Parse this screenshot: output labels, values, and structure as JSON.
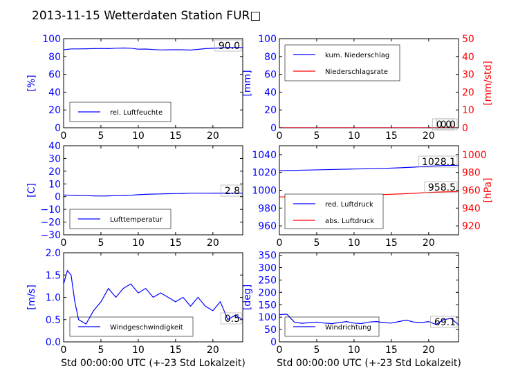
{
  "page_title": "2013-11-15 Wetterdaten Station FUR□",
  "chart_data": [
    {
      "id": "humidity",
      "type": "line",
      "xlim": [
        0,
        24
      ],
      "xticks": [
        0,
        5,
        10,
        15,
        20
      ],
      "ylabel": "[%]",
      "ylabel_color": "#0000ff",
      "ylim": [
        0,
        100
      ],
      "yticks": [
        0,
        20,
        40,
        60,
        80,
        100
      ],
      "ytick_color": "#0000ff",
      "grid": false,
      "legend_position": "lower-left",
      "series": [
        {
          "name": "rel. Luftfeuchte",
          "color": "#0000ff",
          "x": [
            0,
            1,
            2,
            3,
            4,
            5,
            6,
            7,
            8,
            9,
            10,
            11,
            12,
            13,
            14,
            15,
            16,
            17,
            18,
            19,
            20,
            21,
            22,
            23,
            24
          ],
          "y": [
            87.5,
            88.5,
            88.5,
            88.7,
            88.8,
            89,
            88.8,
            89.3,
            89.5,
            89.3,
            88.2,
            88.4,
            87.8,
            87.4,
            87.5,
            87.6,
            87.5,
            87.2,
            88,
            88.8,
            89.2,
            89.6,
            90,
            90,
            90
          ]
        }
      ],
      "value_annotation": "90.0"
    },
    {
      "id": "precip",
      "type": "line",
      "xlim": [
        0,
        24
      ],
      "xticks": [
        0,
        5,
        10,
        15,
        20
      ],
      "ylabel": "[mm]",
      "ylabel_color": "#0000ff",
      "ylim": [
        0,
        100
      ],
      "yticks": [
        0,
        20,
        40,
        60,
        80,
        100
      ],
      "ytick_color": "#0000ff",
      "y2label": "[mm/std]",
      "y2label_color": "#ff0000",
      "y2lim": [
        0,
        50
      ],
      "y2ticks": [
        0,
        10,
        20,
        30,
        40,
        50
      ],
      "y2tick_color": "#ff0000",
      "grid": false,
      "legend_position": "upper-left",
      "series": [
        {
          "name": "kum. Niederschlag",
          "color": "#0000ff",
          "axis": "left",
          "x": [
            0,
            24
          ],
          "y": [
            0,
            0
          ]
        },
        {
          "name": "Niederschlagsrate",
          "color": "#ff0000",
          "axis": "right",
          "x": [
            0,
            24
          ],
          "y": [
            0,
            0
          ]
        }
      ],
      "value_annotation": "0.0",
      "value_annotation_2": "0.0"
    },
    {
      "id": "temperature",
      "type": "line",
      "xlim": [
        0,
        24
      ],
      "xticks": [
        0,
        5,
        10,
        15,
        20
      ],
      "ylabel": "[C]",
      "ylabel_color": "#0000ff",
      "ylim": [
        -30,
        40
      ],
      "yticks": [
        -30,
        -20,
        -10,
        0,
        10,
        20,
        30,
        40
      ],
      "ytick_color": "#0000ff",
      "grid": false,
      "legend_position": "lower-left",
      "series": [
        {
          "name": "Lufttemperatur",
          "color": "#0000ff",
          "x": [
            0,
            1,
            2,
            3,
            4,
            5,
            6,
            7,
            8,
            9,
            10,
            11,
            12,
            13,
            14,
            15,
            16,
            17,
            18,
            19,
            20,
            21,
            22,
            23,
            24
          ],
          "y": [
            1.3,
            1.1,
            0.9,
            0.8,
            0.6,
            0.5,
            0.6,
            0.8,
            0.9,
            1.1,
            1.5,
            1.8,
            2,
            2.1,
            2.3,
            2.4,
            2.5,
            2.7,
            2.7,
            2.7,
            2.8,
            2.8,
            2.8,
            2.8,
            2.8
          ]
        }
      ],
      "value_annotation": "2.8"
    },
    {
      "id": "pressure",
      "type": "line",
      "xlim": [
        0,
        24
      ],
      "xticks": [
        0,
        5,
        10,
        15,
        20
      ],
      "ylim": [
        950,
        1050
      ],
      "yticks": [
        960,
        980,
        1000,
        1020,
        1040
      ],
      "ytick_color": "#0000ff",
      "y2label": "[hPa]",
      "y2label_color": "#ff0000",
      "y2lim": [
        910,
        1010
      ],
      "y2ticks": [
        920,
        940,
        960,
        980,
        1000
      ],
      "y2tick_color": "#ff0000",
      "grid": false,
      "legend_position": "lower-left",
      "series": [
        {
          "name": "red. Luftdruck",
          "color": "#0000ff",
          "axis": "left",
          "x": [
            0,
            2,
            4,
            6,
            8,
            10,
            12,
            14,
            16,
            18,
            20,
            22,
            24
          ],
          "y": [
            1022,
            1022.3,
            1022.7,
            1023.1,
            1023.5,
            1023.9,
            1024.2,
            1024.6,
            1025.2,
            1026,
            1027,
            1027.8,
            1028.1
          ]
        },
        {
          "name": "abs. Luftdruck",
          "color": "#ff0000",
          "axis": "right",
          "x": [
            0,
            2,
            4,
            6,
            8,
            10,
            12,
            14,
            16,
            18,
            20,
            22,
            24
          ],
          "y": [
            952.5,
            952.8,
            953.2,
            953.6,
            954,
            954.4,
            954.8,
            955.2,
            955.8,
            956.6,
            957.5,
            958.2,
            958.5
          ]
        }
      ],
      "value_annotation": "1028.1",
      "value_annotation_2": "958.5"
    },
    {
      "id": "wind_speed",
      "type": "line",
      "xlabel": "Std 00:00:00 UTC (+-23 Std Lokalzeit)",
      "xlim": [
        0,
        24
      ],
      "xticks": [
        0,
        5,
        10,
        15,
        20
      ],
      "ylabel": "[m/s]",
      "ylabel_color": "#0000ff",
      "ylim": [
        0,
        2
      ],
      "yticks": [
        0.0,
        0.5,
        1.0,
        1.5,
        2.0
      ],
      "ytick_color": "#0000ff",
      "grid": false,
      "legend_position": "lower-left",
      "series": [
        {
          "name": "Windgeschwindigkeit",
          "color": "#0000ff",
          "x": [
            0,
            0.5,
            1,
            1.5,
            2,
            3,
            4,
            5,
            6,
            7,
            8,
            9,
            10,
            11,
            12,
            13,
            14,
            15,
            16,
            17,
            18,
            19,
            20,
            21,
            22,
            23,
            24
          ],
          "y": [
            1.3,
            1.6,
            1.5,
            0.9,
            0.5,
            0.4,
            0.7,
            0.9,
            1.2,
            1.0,
            1.2,
            1.3,
            1.1,
            1.2,
            1.0,
            1.1,
            1.0,
            0.9,
            1.0,
            0.8,
            1.0,
            0.8,
            0.7,
            0.9,
            0.5,
            0.6,
            0.5
          ]
        }
      ],
      "value_annotation": "0.5"
    },
    {
      "id": "wind_dir",
      "type": "line",
      "xlabel": "Std 00:00:00 UTC (+-23 Std Lokalzeit)",
      "xlim": [
        0,
        24
      ],
      "xticks": [
        0,
        5,
        10,
        15,
        20
      ],
      "ylabel": "[deg]",
      "ylabel_color": "#0000ff",
      "ylim": [
        0,
        360
      ],
      "yticks": [
        0,
        50,
        100,
        150,
        200,
        250,
        300,
        350
      ],
      "ytick_color": "#0000ff",
      "grid": false,
      "legend_position": "lower-left",
      "series": [
        {
          "name": "Windrichtung",
          "color": "#0000ff",
          "x": [
            0,
            1,
            2,
            3,
            4,
            5,
            6,
            7,
            8,
            9,
            10,
            11,
            12,
            13,
            14,
            15,
            16,
            17,
            18,
            19,
            20,
            21,
            22,
            23,
            24
          ],
          "y": [
            110,
            112,
            80,
            75,
            78,
            80,
            76,
            74,
            78,
            82,
            76,
            74,
            80,
            82,
            78,
            76,
            82,
            88,
            80,
            78,
            82,
            70,
            90,
            95,
            69
          ]
        }
      ],
      "value_annotation": "69.1"
    }
  ]
}
